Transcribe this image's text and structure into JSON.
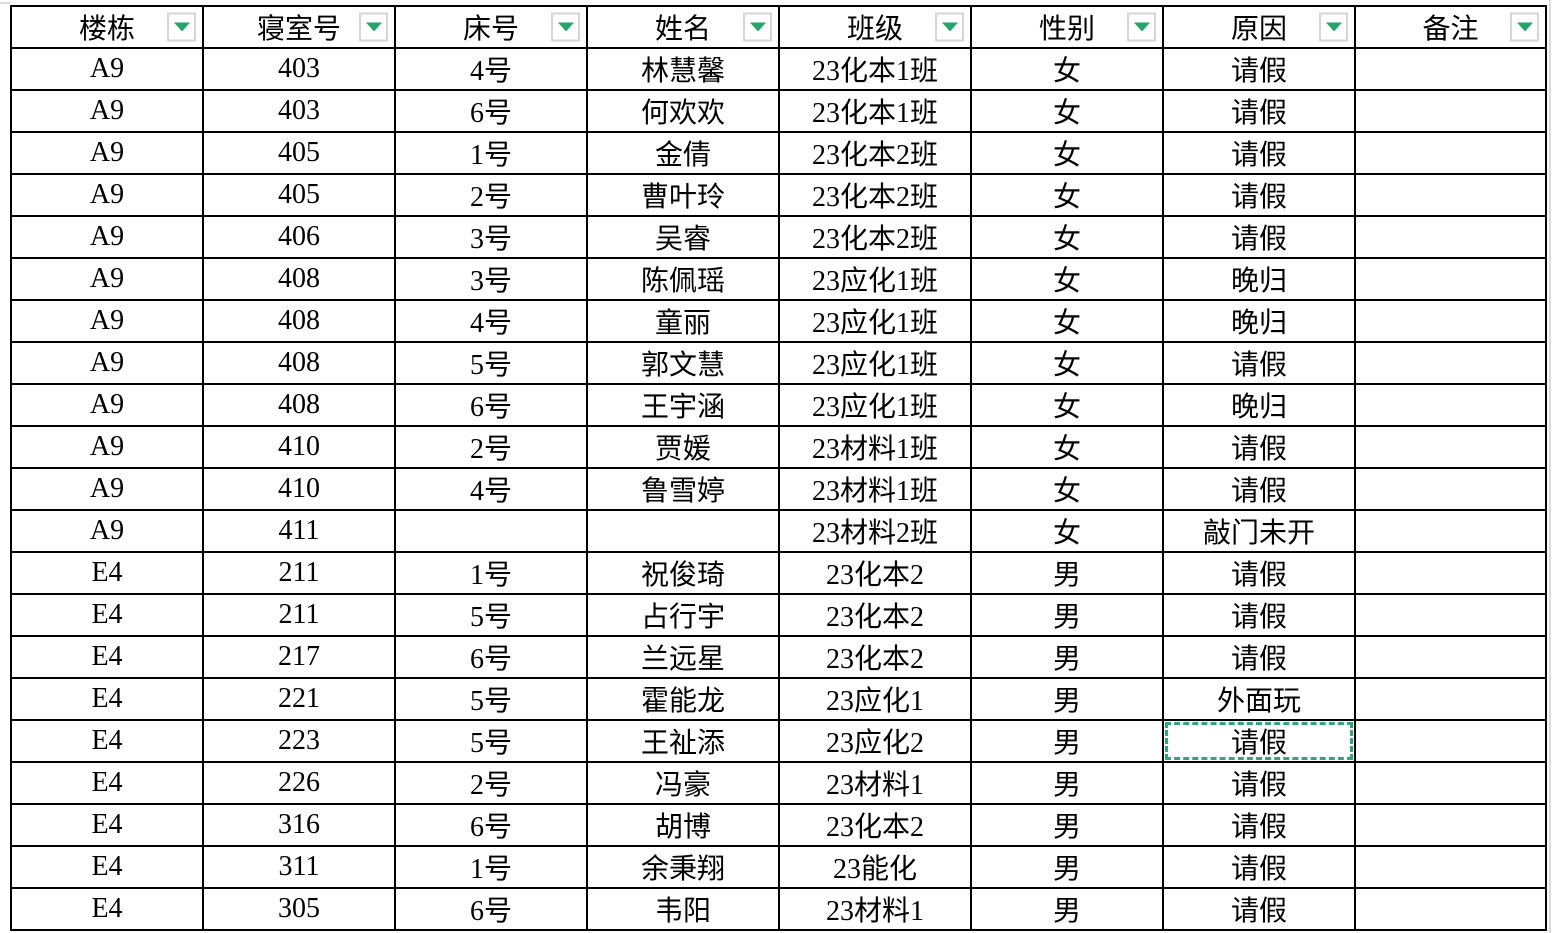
{
  "colors": {
    "accent_green": "#21a76b",
    "selection_marquee_green": "#2aa97f",
    "filter_button_border": "#d6d6d6",
    "grid_line_black": "#000000",
    "outer_gridline_gray": "#dcdcdc"
  },
  "icons": {
    "header_filter": "chevron-down"
  },
  "table": {
    "columns": [
      "楼栋",
      "寝室号",
      "床号",
      "姓名",
      "班级",
      "性别",
      "原因",
      "备注"
    ],
    "rows": [
      [
        "A9",
        "403",
        "4号",
        "林慧馨",
        "23化本1班",
        "女",
        "请假",
        ""
      ],
      [
        "A9",
        "403",
        "6号",
        "何欢欢",
        "23化本1班",
        "女",
        "请假",
        ""
      ],
      [
        "A9",
        "405",
        "1号",
        "金倩",
        "23化本2班",
        "女",
        "请假",
        ""
      ],
      [
        "A9",
        "405",
        "2号",
        "曹叶玲",
        "23化本2班",
        "女",
        "请假",
        ""
      ],
      [
        "A9",
        "406",
        "3号",
        "吴睿",
        "23化本2班",
        "女",
        "请假",
        ""
      ],
      [
        "A9",
        "408",
        "3号",
        "陈佩瑶",
        "23应化1班",
        "女",
        "晚归",
        ""
      ],
      [
        "A9",
        "408",
        "4号",
        "童丽",
        "23应化1班",
        "女",
        "晚归",
        ""
      ],
      [
        "A9",
        "408",
        "5号",
        "郭文慧",
        "23应化1班",
        "女",
        "请假",
        ""
      ],
      [
        "A9",
        "408",
        "6号",
        "王宇涵",
        "23应化1班",
        "女",
        "晚归",
        ""
      ],
      [
        "A9",
        "410",
        "2号",
        "贾媛",
        "23材料1班",
        "女",
        "请假",
        ""
      ],
      [
        "A9",
        "410",
        "4号",
        "鲁雪婷",
        "23材料1班",
        "女",
        "请假",
        ""
      ],
      [
        "A9",
        "411",
        "",
        "",
        "23材料2班",
        "女",
        "敲门未开",
        ""
      ],
      [
        "E4",
        "211",
        "1号",
        "祝俊琦",
        "23化本2",
        "男",
        "请假",
        ""
      ],
      [
        "E4",
        "211",
        "5号",
        "占行宇",
        "23化本2",
        "男",
        "请假",
        ""
      ],
      [
        "E4",
        "217",
        "6号",
        "兰远星",
        "23化本2",
        "男",
        "请假",
        ""
      ],
      [
        "E4",
        "221",
        "5号",
        "霍能龙",
        "23应化1",
        "男",
        "外面玩",
        ""
      ],
      [
        "E4",
        "223",
        "5号",
        "王祉添",
        "23应化2",
        "男",
        "请假",
        ""
      ],
      [
        "E4",
        "226",
        "2号",
        "冯豪",
        "23材料1",
        "男",
        "请假",
        ""
      ],
      [
        "E4",
        "316",
        "6号",
        "胡博",
        "23化本2",
        "男",
        "请假",
        ""
      ],
      [
        "E4",
        "311",
        "1号",
        "余秉翔",
        "23能化",
        "男",
        "请假",
        ""
      ],
      [
        "E4",
        "305",
        "6号",
        "韦阳",
        "23材料1",
        "男",
        "请假",
        ""
      ]
    ]
  },
  "selected_cell": {
    "row_index": 16,
    "col_index": 6
  }
}
